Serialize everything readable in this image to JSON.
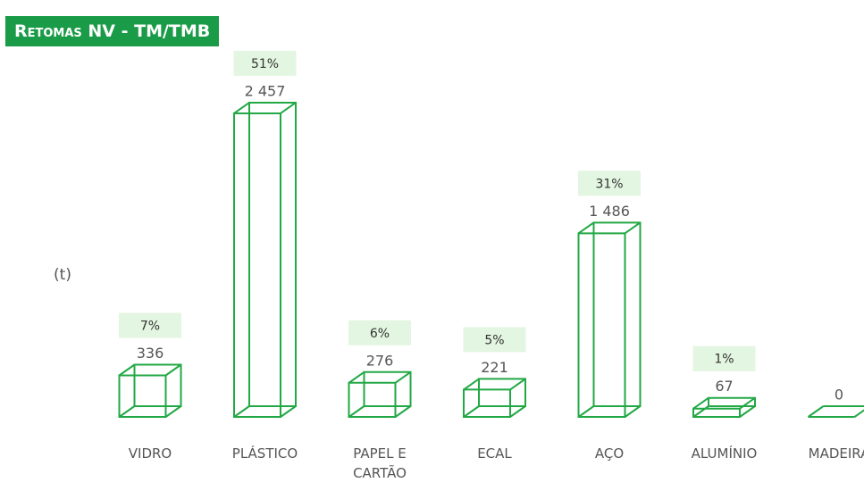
{
  "chart_data": {
    "type": "bar",
    "title": "Retomas NV - TM/TMB",
    "y_label": "(t)",
    "categories": [
      "VIDRO",
      "PLÁSTICO",
      "PAPEL E CARTÃO",
      "ECAL",
      "AÇO",
      "ALUMÍNIO",
      "MADEIRA"
    ],
    "values": [
      336,
      2457,
      276,
      221,
      1486,
      67,
      0
    ],
    "value_labels": [
      "336",
      "2 457",
      "276",
      "221",
      "1 486",
      "67",
      "0"
    ],
    "shares": [
      7,
      51,
      6,
      5,
      31,
      1,
      null
    ],
    "share_labels": [
      "7%",
      "51%",
      "6%",
      "5%",
      "31%",
      "1%",
      null
    ],
    "color": "#22a845",
    "share_box_color": "#e3f6e1",
    "title_color": "#1a9b47",
    "ylim": [
      0,
      2500
    ]
  }
}
